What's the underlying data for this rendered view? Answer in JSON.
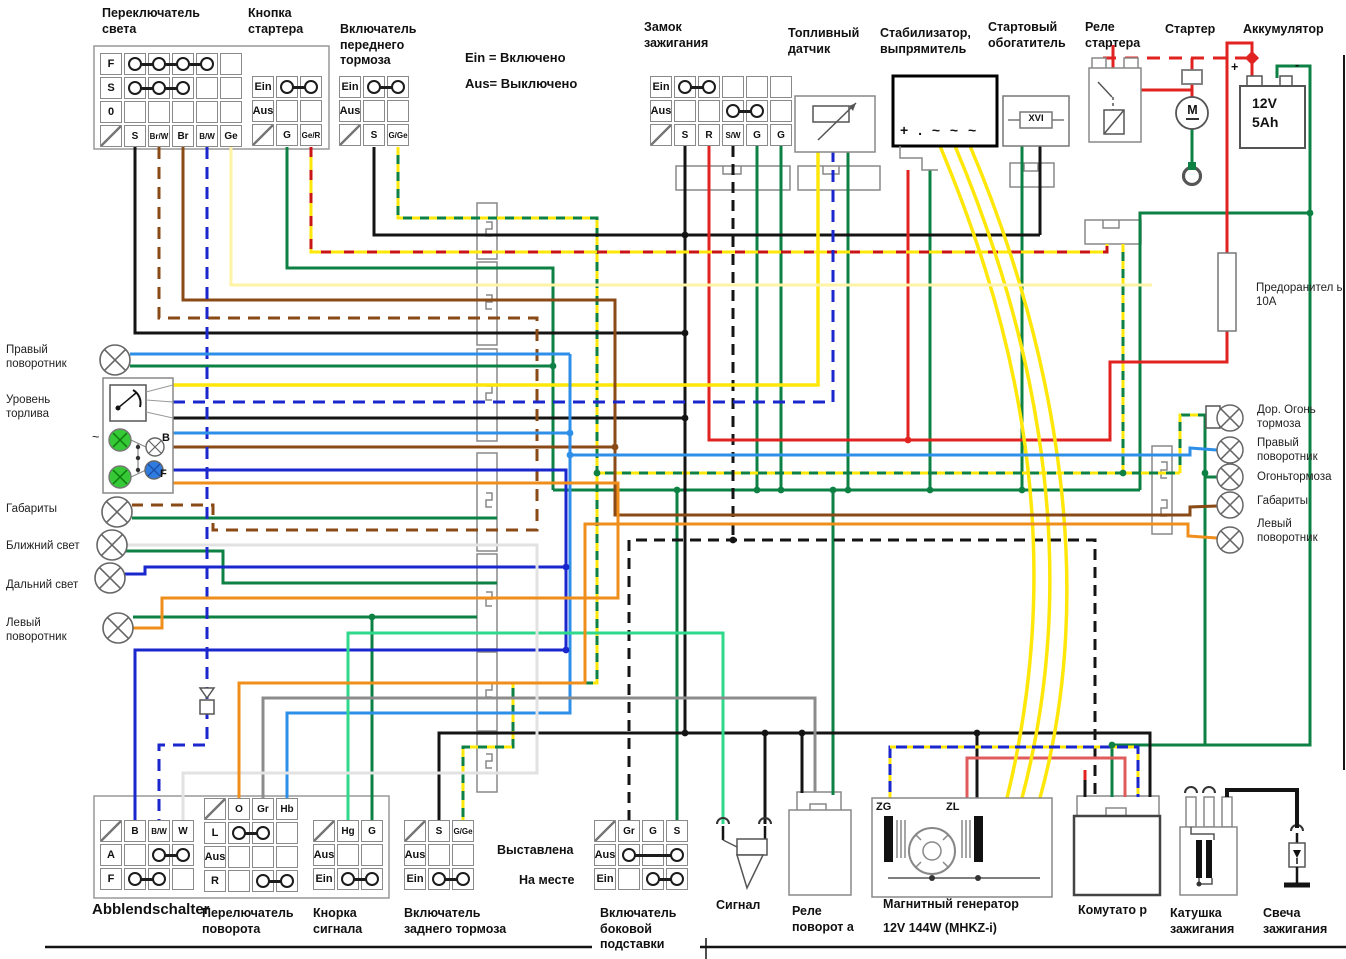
{
  "titles": {
    "light_switch": "Переключатель света",
    "starter_button": "Кнопка стартера",
    "front_brake": "Включатель переднего тормоза",
    "ignition_lock": "Замок зажигания",
    "fuel_sensor": "Топливный датчик",
    "stabilizer": "Стабилизатор, выпрямитель",
    "enricher": "Стартовый обогатитель",
    "starter_relay": "Реле стартера",
    "starter": "Стартер",
    "battery": "Аккумулятор",
    "fuse": "Предоранител ь 10А",
    "abblendschalter": "Abblendschalter",
    "turn_switch": "Перелючатель поворота",
    "horn_button": "Кнорка сигнала",
    "rear_brake": "Включатель заднего тормоза",
    "side_stand": "Включатель боковой подставки",
    "horn": "Сигнал",
    "turn_relay": "Реле поворот а",
    "magneto": "Магнитный генератор",
    "magneto_sub": "12V 144W (MHKZ-i)",
    "cdi": "Комутато р",
    "coil": "Катушка зажигания",
    "plug": "Свеча зажигания"
  },
  "legend": {
    "ein": "Ein = Включено",
    "aus": "Aus= Выключено"
  },
  "switch_blocks": {
    "light_switch": {
      "pins": [
        "S",
        "Br/W",
        "Br",
        "B/W",
        "Ge"
      ],
      "pins_top": false,
      "rows": [
        {
          "label": "F",
          "chain": [
            1,
            4
          ]
        },
        {
          "label": "S",
          "chain": [
            1,
            3
          ]
        },
        {
          "label": "0"
        }
      ]
    },
    "starter_button": {
      "pins": [
        "G",
        "Ge/R"
      ],
      "pins_top": false,
      "rows": [
        {
          "label": "Ein",
          "chain": [
            1,
            2
          ]
        },
        {
          "label": "Aus"
        }
      ]
    },
    "front_brake": {
      "pins": [
        "S",
        "G/Ge"
      ],
      "pins_top": false,
      "rows": [
        {
          "label": "Ein",
          "chain": [
            1,
            2
          ]
        },
        {
          "label": "Aus"
        }
      ]
    },
    "ignition_lock": {
      "pins": [
        "S",
        "R",
        "S/W",
        "G",
        "G"
      ],
      "pins_top": false,
      "rows": [
        {
          "label": "Ein",
          "chain": [
            1,
            2
          ]
        },
        {
          "label": "Aus",
          "chain": [
            3,
            4
          ]
        }
      ]
    },
    "abblendschalter": {
      "pins": [
        "B",
        "B/W",
        "W"
      ],
      "pins_top": true,
      "rows": [
        {
          "label": "A",
          "chain": [
            2,
            3
          ]
        },
        {
          "label": "F",
          "chain": [
            1,
            2
          ]
        }
      ]
    },
    "turn_switch": {
      "pins": [
        "O",
        "Gr",
        "Hb"
      ],
      "pins_top": true,
      "rows": [
        {
          "label": "L",
          "chain": [
            1,
            2
          ]
        },
        {
          "label": "Aus"
        },
        {
          "label": "R",
          "chain": [
            2,
            3
          ]
        }
      ]
    },
    "horn_button": {
      "pins": [
        "Hg",
        "G"
      ],
      "pins_top": true,
      "rows": [
        {
          "label": "Aus"
        },
        {
          "label": "Ein",
          "chain": [
            1,
            2
          ]
        }
      ]
    },
    "rear_brake": {
      "pins": [
        "S",
        "G/Ge"
      ],
      "pins_top": true,
      "rows": [
        {
          "label": "Aus"
        },
        {
          "label": "Ein",
          "chain": [
            1,
            2
          ]
        }
      ]
    },
    "side_stand": {
      "pins": [
        "Gr",
        "G",
        "S"
      ],
      "pins_top": true,
      "rows": [
        {
          "label": "Aus",
          "chain": [
            1,
            3
          ],
          "style": "ends"
        },
        {
          "label": "Ein",
          "chain": [
            2,
            3
          ]
        }
      ]
    }
  },
  "lamp_labels_left": [
    "Правый поворотник",
    "Уровень торлива",
    "Габариты",
    "Ближний свет",
    "Дальний свет",
    "Левый поворотник"
  ],
  "lamp_labels_right": [
    "Дор. Огонь тормоза",
    "Правый поворотник",
    "Огоньтормоза",
    "Габариты",
    "Левый поворотник"
  ],
  "stand_notes": [
    "Выставлена",
    "На месте"
  ],
  "device_text": {
    "battery_v": "12V",
    "battery_ah": "5Ah",
    "battery_plus": "+",
    "battery_minus": "-",
    "motor": "M",
    "stabilizer_terminals": "+ .  ~  ~  ~",
    "enricher_symbol": "XVI",
    "zg": "ZG",
    "zl": "ZL",
    "gauge_b": "B",
    "gauge_f": "F",
    "tilde": "~"
  },
  "wire_colors": {
    "black": "#141414",
    "red": "#e02321",
    "red_pink": "#e05b5b",
    "green": "#0d8044",
    "yellow": "#ffe70a",
    "pale_yellow": "#fff3a6",
    "orange": "#ef8e1b",
    "brown": "#8a4a15",
    "blue": "#1a27cc",
    "light_blue": "#2e8fe8",
    "mint": "#2fd98b",
    "gray": "#8c8c8c",
    "white_wire": "#e2e2e2"
  }
}
